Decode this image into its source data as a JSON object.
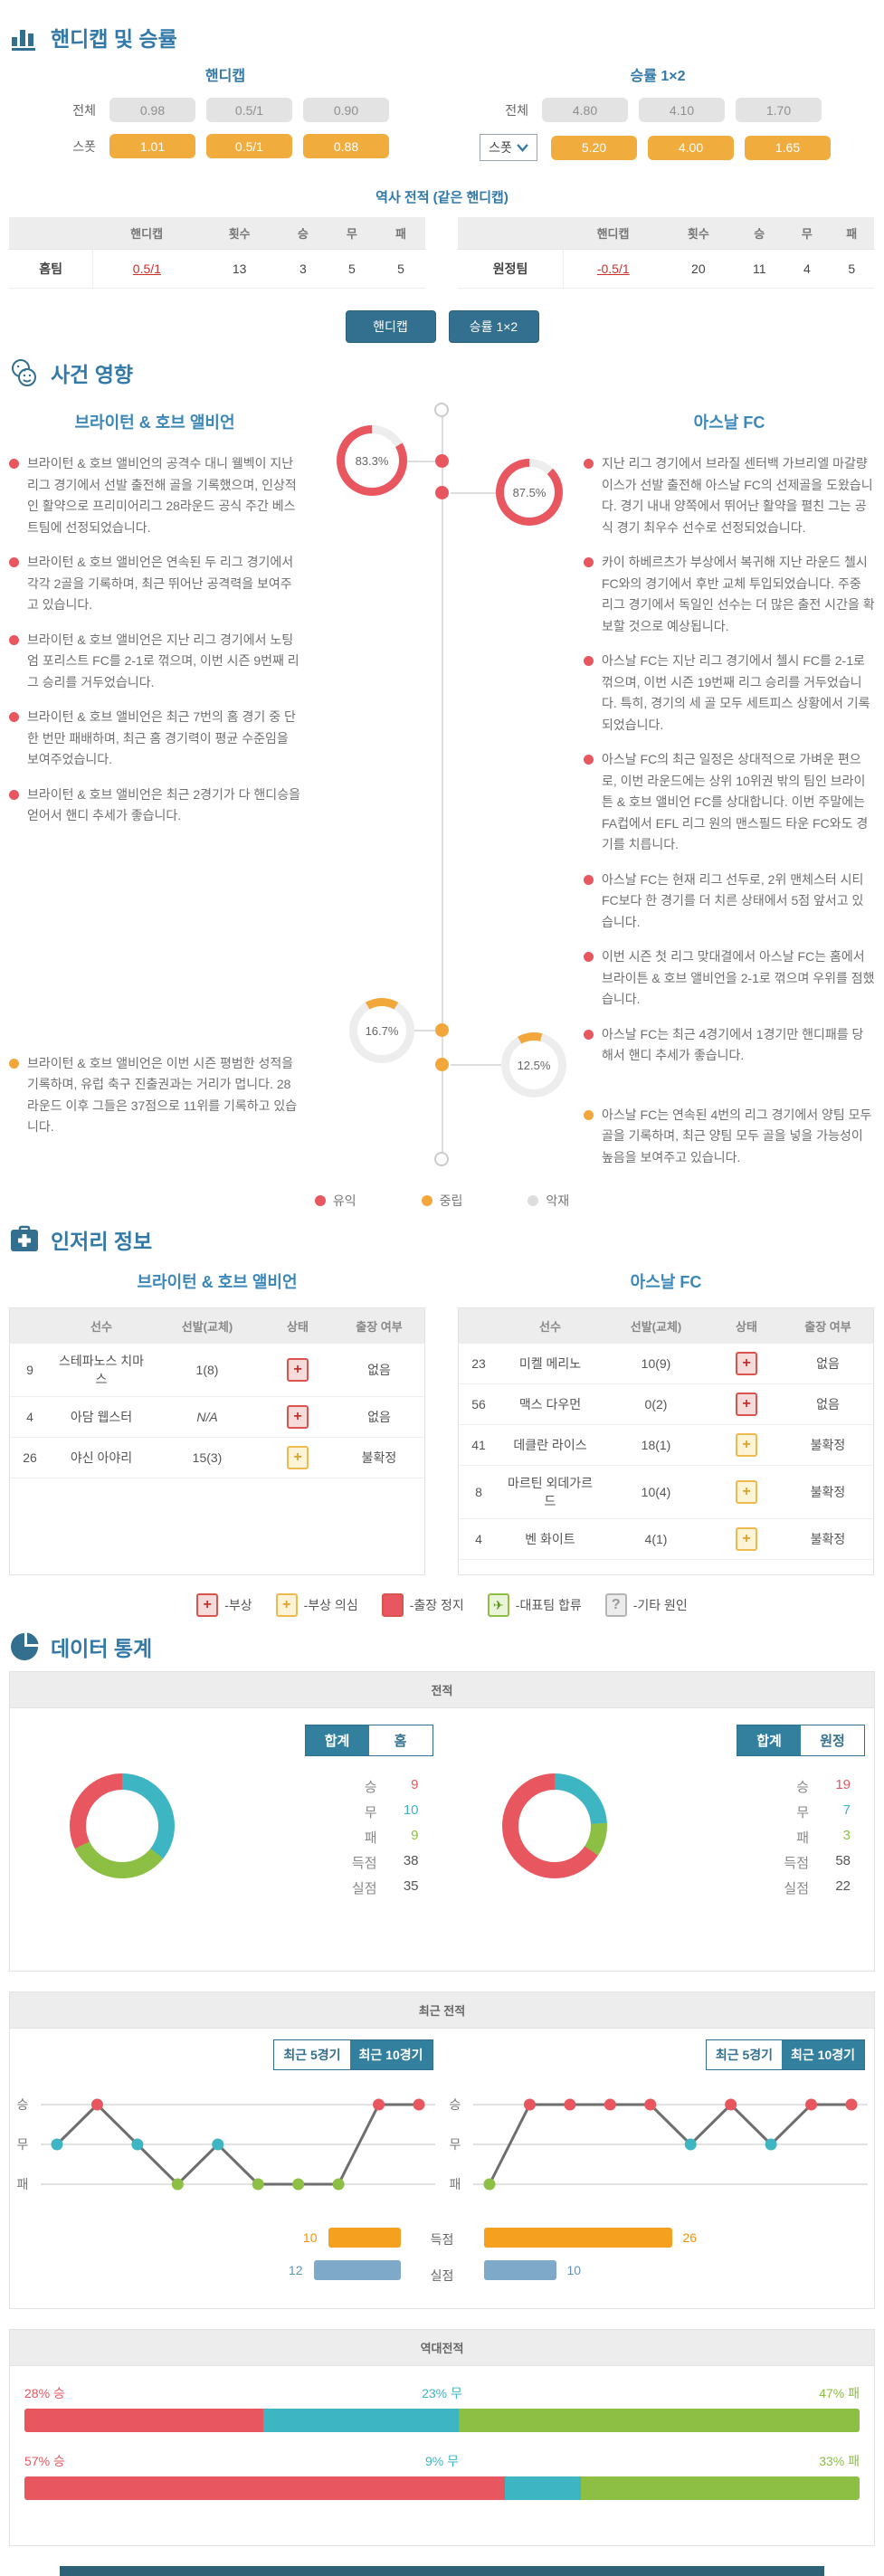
{
  "accent": {
    "heading": "#3279a8",
    "teal_button": "#336f8e",
    "toggle_teal": "#337f9e",
    "orange_pill": "#f0ac3d",
    "red": "#e8575f",
    "neutral_orange": "#f2a73b",
    "draw_teal": "#3db5c2",
    "loss_green": "#8cbf43",
    "goal_orange": "#f5a01e",
    "goal_blue": "#7fa9c9"
  },
  "section1": {
    "title": "핸디캡 및 승률",
    "groups": [
      {
        "title": "핸디캡",
        "rows": [
          {
            "label": "전체",
            "style": "gray",
            "dropdown": false,
            "values": [
              "0.98",
              "0.5/1",
              "0.90"
            ]
          },
          {
            "label": "스폿",
            "style": "orange",
            "dropdown": false,
            "values": [
              "1.01",
              "0.5/1",
              "0.88"
            ]
          }
        ]
      },
      {
        "title": "승률 1×2",
        "rows": [
          {
            "label": "전체",
            "style": "gray",
            "dropdown": false,
            "values": [
              "4.80",
              "4.10",
              "1.70"
            ]
          },
          {
            "label": "스폿",
            "style": "orange",
            "dropdown": true,
            "values": [
              "5.20",
              "4.00",
              "1.65"
            ]
          }
        ]
      }
    ],
    "history": {
      "title": "역사 전적 (같은 핸디캡)",
      "headers": [
        "핸디캡",
        "횟수",
        "승",
        "무",
        "패"
      ],
      "tables": [
        {
          "team": "홈팀",
          "handicap": "0.5/1",
          "count": 13,
          "win": 3,
          "draw": 5,
          "loss": 5
        },
        {
          "team": "원정팀",
          "handicap": "-0.5/1",
          "count": 20,
          "win": 11,
          "draw": 4,
          "loss": 5
        }
      ]
    },
    "buttons": [
      "핸디캡",
      "승률 1×2"
    ]
  },
  "events": {
    "title": "사건 영향",
    "home": {
      "name": "브라이턴 & 호브 앨비언",
      "good_pct": 83.3,
      "neutral_pct": 16.7,
      "good": [
        "브라이턴 & 호브 앨비언의 공격수 대니 웰벡이 지난 리그 경기에서 선발 출전해 골을 기록했으며, 인상적인 활약으로 프리미어리그 28라운드 공식 주간 베스트팀에 선정되었습니다.",
        "브라이턴 & 호브 앨비언은 연속된 두 리그 경기에서 각각 2골을 기록하며, 최근 뛰어난 공격력을 보여주고 있습니다.",
        "브라이턴 & 호브 앨비언은 지난 리그 경기에서 노팅엄 포리스트 FC를 2-1로 꺾으며, 이번 시즌 9번째 리그 승리를 거두었습니다.",
        "브라이턴 & 호브 앨비언은 최근 7번의 홈 경기 중 단 한 번만 패배하며, 최근 홈 경기력이 평균 수준임을 보여주었습니다.",
        "브라이턴 & 호브 앨비언은 최근 2경기가 다 핸디승을 얻어서 핸디 추세가 좋습니다."
      ],
      "neutral": [
        "브라이턴 & 호브 앨비언은 이번 시즌 평범한 성적을 기록하며, 유럽 축구 진출권과는 거리가 멉니다. 28라운드 이후 그들은 37점으로 11위를 기록하고 있습니다."
      ]
    },
    "away": {
      "name": "아스날 FC",
      "good_pct": 87.5,
      "neutral_pct": 12.5,
      "good": [
        "지난 리그 경기에서 브라질 센터백 가브리엘 마갈량이스가 선발 출전해 아스날 FC의 선제골을 도왔습니다. 경기 내내 양쪽에서 뛰어난 활약을 펼친 그는 공식 경기 최우수 선수로 선정되었습니다.",
        "카이 하베르츠가 부상에서 복귀해 지난 라운드 첼시 FC와의 경기에서 후반 교체 투입되었습니다. 주중 리그 경기에서 독일인 선수는 더 많은 출전 시간을 확보할 것으로 예상됩니다.",
        "아스날 FC는 지난 리그 경기에서 첼시 FC를 2-1로 꺾으며, 이번 시즌 19번째 리그 승리를 거두었습니다. 특히, 경기의 세 골 모두 세트피스 상황에서 기록되었습니다.",
        "아스날 FC의 최근 일정은 상대적으로 가벼운 편으로, 이번 라운드에는 상위 10위권 밖의 팀인 브라이튼 & 호브 앨비언 FC를 상대합니다. 이번 주말에는 FA컵에서 EFL 리그 원의 맨스필드 타운 FC와도 경기를 치릅니다.",
        "아스날 FC는 현재 리그 선두로, 2위 맨체스터 시티 FC보다 한 경기를 더 치른 상태에서 5점 앞서고 있습니다.",
        "이번 시즌 첫 리그 맞대결에서 아스날 FC는 홈에서 브라이튼 & 호브 앨비언을 2-1로 꺾으며 우위를 점했습니다.",
        "아스날 FC는 최근 4경기에서 1경기만 핸디패를 당해서 핸디 추세가 좋습니다."
      ],
      "neutral": [
        "아스날 FC는 연속된 4번의 리그 경기에서 양팀 모두 골을 기록하며, 최근 양팀 모두 골을 넣을 가능성이 높음을 보여주고 있습니다."
      ]
    },
    "legend": [
      {
        "label": "유익",
        "color": "#e8575f"
      },
      {
        "label": "중립",
        "color": "#f2a73b"
      },
      {
        "label": "악재",
        "color": "#dddddd"
      }
    ]
  },
  "injury": {
    "title": "인저리 정보",
    "headers": [
      "선수",
      "선발(교체)",
      "상태",
      "출장 여부"
    ],
    "home": {
      "name": "브라이턴 & 호브 앨비언",
      "rows": [
        {
          "num": "9",
          "player": "스테파노스 치마스",
          "apps": "1(8)",
          "status": "injury",
          "avail": "없음"
        },
        {
          "num": "4",
          "player": "아담 웹스터",
          "apps": "N/A",
          "status": "injury",
          "avail": "없음"
        },
        {
          "num": "26",
          "player": "야신 아야리",
          "apps": "15(3)",
          "status": "doubt",
          "avail": "불확정"
        }
      ]
    },
    "away": {
      "name": "아스날 FC",
      "rows": [
        {
          "num": "23",
          "player": "미켈 메리노",
          "apps": "10(9)",
          "status": "injury",
          "avail": "없음"
        },
        {
          "num": "56",
          "player": "맥스 다우먼",
          "apps": "0(2)",
          "status": "injury",
          "avail": "없음"
        },
        {
          "num": "41",
          "player": "데클란 라이스",
          "apps": "18(1)",
          "status": "doubt",
          "avail": "불확정"
        },
        {
          "num": "8",
          "player": "마르틴 외데가르드",
          "apps": "10(4)",
          "status": "doubt",
          "avail": "불확정"
        },
        {
          "num": "4",
          "player": "벤 화이트",
          "apps": "4(1)",
          "status": "doubt",
          "avail": "불확정"
        }
      ]
    },
    "legend": [
      {
        "type": "injury",
        "label": "-부상"
      },
      {
        "type": "doubt",
        "label": "-부상 의심"
      },
      {
        "type": "suspended",
        "label": "-출장 정지"
      },
      {
        "type": "natteam",
        "label": "-대표팀 합류"
      },
      {
        "type": "other",
        "label": "-기타 원인"
      }
    ]
  },
  "stats": {
    "title": "데이터 통계",
    "record": {
      "panel_title": "전적",
      "row_labels": [
        "승",
        "무",
        "패",
        "득점",
        "실점"
      ],
      "home": {
        "toggles": [
          "합계",
          "홈"
        ],
        "selected": 0,
        "win": 9,
        "draw": 10,
        "loss": 9,
        "scored": 38,
        "conceded": 35
      },
      "away": {
        "toggles": [
          "합계",
          "원정"
        ],
        "selected": 0,
        "win": 19,
        "draw": 7,
        "loss": 3,
        "scored": 58,
        "conceded": 22
      }
    },
    "recent": {
      "panel_title": "최근 전적",
      "toggles": [
        "최근 5경기",
        "최근 10경기"
      ],
      "selected": 1,
      "ylabels": [
        "승",
        "무",
        "패"
      ],
      "bar_labels": [
        "득점",
        "실점"
      ],
      "home": {
        "results": [
          "무",
          "승",
          "무",
          "패",
          "무",
          "패",
          "패",
          "패",
          "승",
          "승"
        ],
        "scored": 10,
        "conceded": 12
      },
      "away": {
        "results": [
          "패",
          "승",
          "승",
          "승",
          "승",
          "무",
          "승",
          "무",
          "승",
          "승"
        ],
        "scored": 26,
        "conceded": 10
      }
    },
    "h2h": {
      "panel_title": "역대전적",
      "suffix": {
        "win": "승",
        "draw": "무",
        "loss": "패"
      },
      "bars": [
        {
          "win": 28,
          "draw": 23,
          "loss": 47
        },
        {
          "win": 57,
          "draw": 9,
          "loss": 33
        }
      ]
    }
  }
}
